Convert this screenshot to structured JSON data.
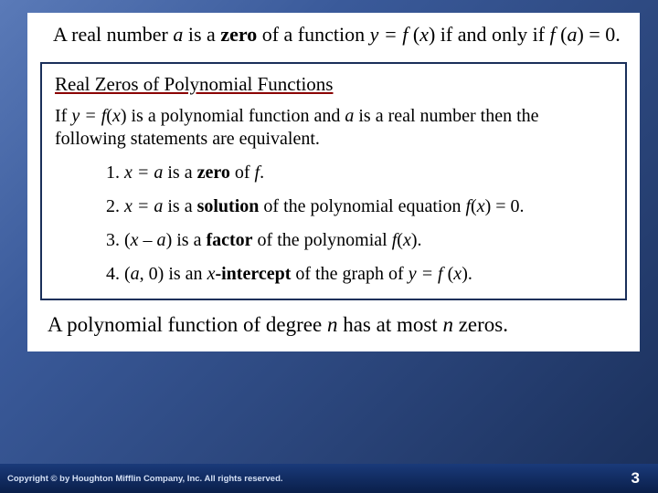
{
  "colors": {
    "slide_bg_start": "#5a7ab8",
    "slide_bg_mid": "#3a5a9a",
    "slide_bg_end": "#1a2f5a",
    "content_bg": "#ffffff",
    "box_border": "#1a2f5a",
    "underline": "#8b0000",
    "text": "#000000",
    "footer_bg_start": "#1a3a7a",
    "footer_bg_end": "#0a1f4a",
    "footer_text": "#d4e0f5",
    "pagenum_color": "#ffffff"
  },
  "typography": {
    "body_family": "Times New Roman",
    "footer_family": "Arial",
    "intro_fontsize": 22,
    "box_title_fontsize": 21,
    "box_body_fontsize": 20,
    "closing_fontsize": 23,
    "copyright_fontsize": 9.5,
    "pagenum_fontsize": 17
  },
  "intro": {
    "part1": "A real number ",
    "a": "a",
    "part2": " is a ",
    "zero": "zero",
    "part3": " of a function ",
    "eq1": "y = f ",
    "eq1b": "(",
    "x": "x",
    "eq1c": ")",
    "part4": " if and only if ",
    "eq2a": "f ",
    "eq2b": "(",
    "a2": "a",
    "eq2c": ") = 0."
  },
  "box": {
    "title": "Real Zeros of Polynomial Functions",
    "intro": {
      "part1": "If ",
      "eq": "y = f",
      "eqb": "(",
      "x": "x",
      "eqc": ")",
      "part2": " is a polynomial function and ",
      "a": "a",
      "part3": " is a real number then the following statements are equivalent."
    },
    "statements": [
      {
        "num": "1. ",
        "eq": "x = a",
        "mid": " is a ",
        "bold": "zero",
        "tail": " of ",
        "f": "f",
        "end": "."
      },
      {
        "num": "2. ",
        "eq": "x = a",
        "mid": " is a ",
        "bold": "solution",
        "tail": " of the polynomial equation ",
        "f": "f",
        "paren_o": "(",
        "x": "x",
        "paren_c": ") = 0."
      },
      {
        "num": "3. (",
        "eq": "x – a",
        "mid": ") is a ",
        "bold": "factor",
        "tail": " of the polynomial ",
        "f": "f",
        "paren_o": "(",
        "x": "x",
        "paren_c": ")."
      },
      {
        "num": "4. (",
        "eq": "a",
        "mid": ", 0) is an ",
        "xint": "x",
        "bold": "-intercept",
        "tail": " of the graph of  ",
        "yeq": "y = f ",
        "paren_o": "(",
        "x": "x",
        "paren_c": ")."
      }
    ]
  },
  "closing": {
    "part1": "A polynomial function of degree ",
    "n1": "n",
    "part2": " has at most ",
    "n2": "n",
    "part3": " zeros."
  },
  "footer": {
    "copyright": "Copyright © by Houghton Mifflin Company, Inc. All rights reserved.",
    "page": "3"
  }
}
